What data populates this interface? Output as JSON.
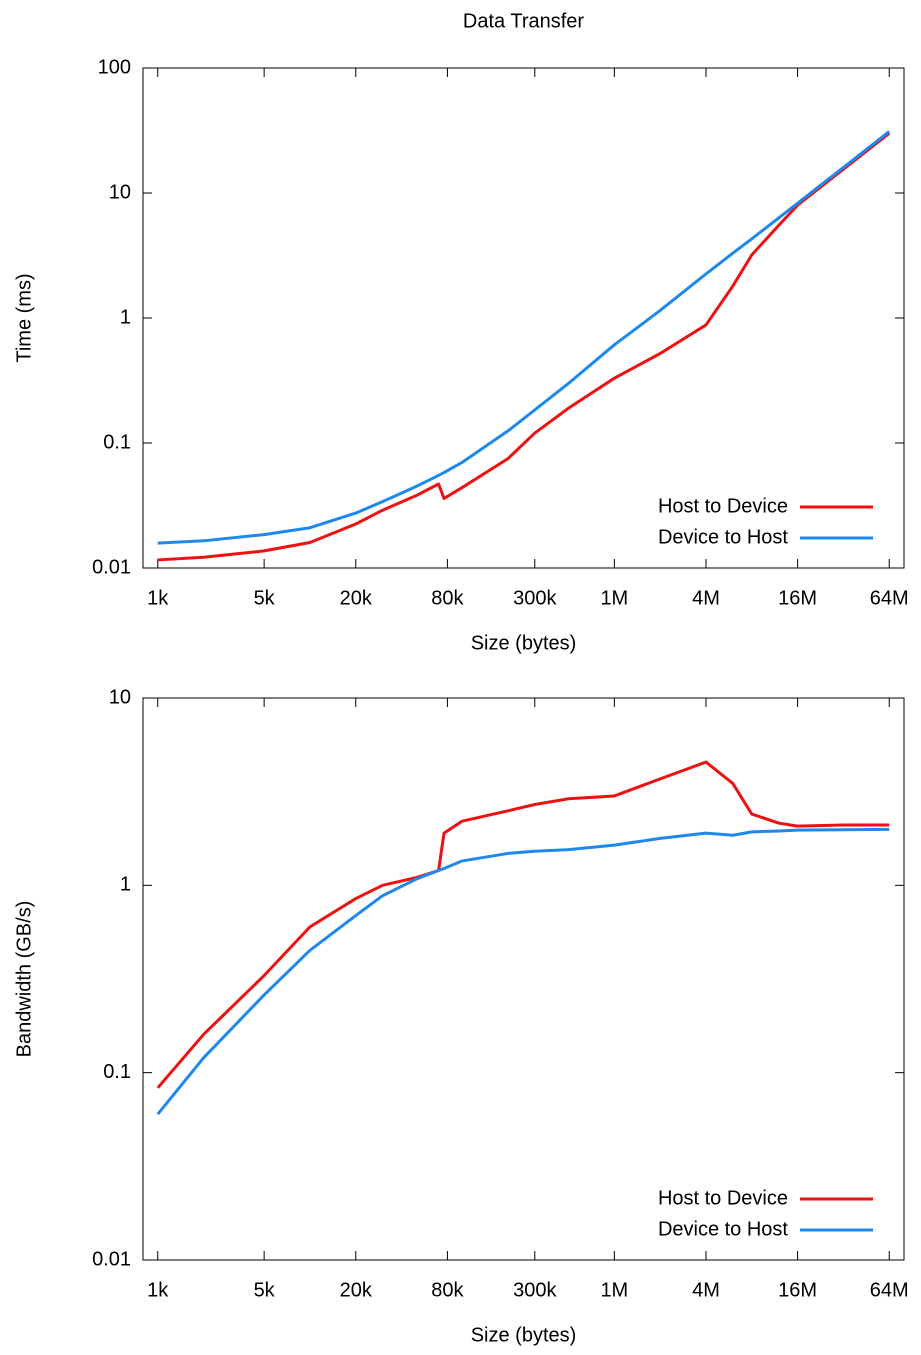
{
  "chart_data": [
    {
      "type": "line",
      "title": "Data Transfer",
      "xlabel": "Size (bytes)",
      "ylabel": "Time (ms)",
      "xscale": "log",
      "yscale": "log",
      "legend": "lower right",
      "x": [
        1000,
        2000,
        5000,
        10000,
        20000,
        30000,
        50000,
        70000,
        76000,
        100000,
        200000,
        300000,
        500000,
        1000000,
        2000000,
        4000000,
        6000000,
        8000000,
        12000000,
        16000000,
        32000000,
        64000000
      ],
      "series": [
        {
          "name": "Host to Device",
          "color": "#ee1111",
          "values": [
            0.0116,
            0.0122,
            0.0137,
            0.016,
            0.0225,
            0.029,
            0.038,
            0.047,
            0.036,
            0.044,
            0.075,
            0.12,
            0.19,
            0.33,
            0.52,
            0.88,
            1.8,
            3.2,
            5.5,
            8.0,
            15.5,
            30
          ]
        },
        {
          "name": "Device to Host",
          "color": "#1f88ee",
          "values": [
            0.0158,
            0.0165,
            0.0185,
            0.021,
            0.0275,
            0.034,
            0.045,
            0.055,
            0.058,
            0.07,
            0.125,
            0.184,
            0.3,
            0.61,
            1.15,
            2.25,
            3.3,
            4.3,
            6.3,
            8.3,
            16,
            31
          ]
        }
      ],
      "xlim": [
        800,
        80000000
      ],
      "xticks": [
        {
          "value": 1000,
          "label": "1k"
        },
        {
          "value": 5000,
          "label": "5k"
        },
        {
          "value": 20000,
          "label": "20k"
        },
        {
          "value": 80000,
          "label": "80k"
        },
        {
          "value": 300000,
          "label": "300k"
        },
        {
          "value": 1000000,
          "label": "1M"
        },
        {
          "value": 4000000,
          "label": "4M"
        },
        {
          "value": 16000000,
          "label": "16M"
        },
        {
          "value": 64000000,
          "label": "64M"
        }
      ],
      "ylim": [
        0.01,
        100
      ],
      "yticks": [
        0.01,
        0.1,
        1,
        10,
        100
      ]
    },
    {
      "type": "line",
      "xlabel": "Size (bytes)",
      "ylabel": "Bandwidth (GB/s)",
      "xscale": "log",
      "yscale": "log",
      "legend": "lower right",
      "x": [
        1000,
        2000,
        5000,
        10000,
        20000,
        30000,
        50000,
        70000,
        76000,
        100000,
        200000,
        300000,
        500000,
        1000000,
        2000000,
        4000000,
        6000000,
        8000000,
        12000000,
        16000000,
        32000000,
        64000000
      ],
      "series": [
        {
          "name": "Host to Device",
          "color": "#ee1111",
          "values": [
            0.083,
            0.16,
            0.33,
            0.6,
            0.85,
            1.0,
            1.1,
            1.2,
            1.9,
            2.2,
            2.5,
            2.7,
            2.9,
            3.0,
            3.7,
            4.55,
            3.5,
            2.4,
            2.15,
            2.07,
            2.1,
            2.1
          ]
        },
        {
          "name": "Device to Host",
          "color": "#1f88ee",
          "values": [
            0.06,
            0.12,
            0.26,
            0.45,
            0.69,
            0.88,
            1.08,
            1.2,
            1.23,
            1.35,
            1.48,
            1.52,
            1.55,
            1.64,
            1.78,
            1.9,
            1.85,
            1.93,
            1.95,
            1.97,
            1.98,
            1.99
          ]
        }
      ],
      "xlim": [
        800,
        80000000
      ],
      "xticks": [
        {
          "value": 1000,
          "label": "1k"
        },
        {
          "value": 5000,
          "label": "5k"
        },
        {
          "value": 20000,
          "label": "20k"
        },
        {
          "value": 80000,
          "label": "80k"
        },
        {
          "value": 300000,
          "label": "300k"
        },
        {
          "value": 1000000,
          "label": "1M"
        },
        {
          "value": 4000000,
          "label": "4M"
        },
        {
          "value": 16000000,
          "label": "16M"
        },
        {
          "value": 64000000,
          "label": "64M"
        }
      ],
      "ylim": [
        0.01,
        10
      ],
      "yticks": [
        0.01,
        0.1,
        1,
        10
      ]
    }
  ]
}
